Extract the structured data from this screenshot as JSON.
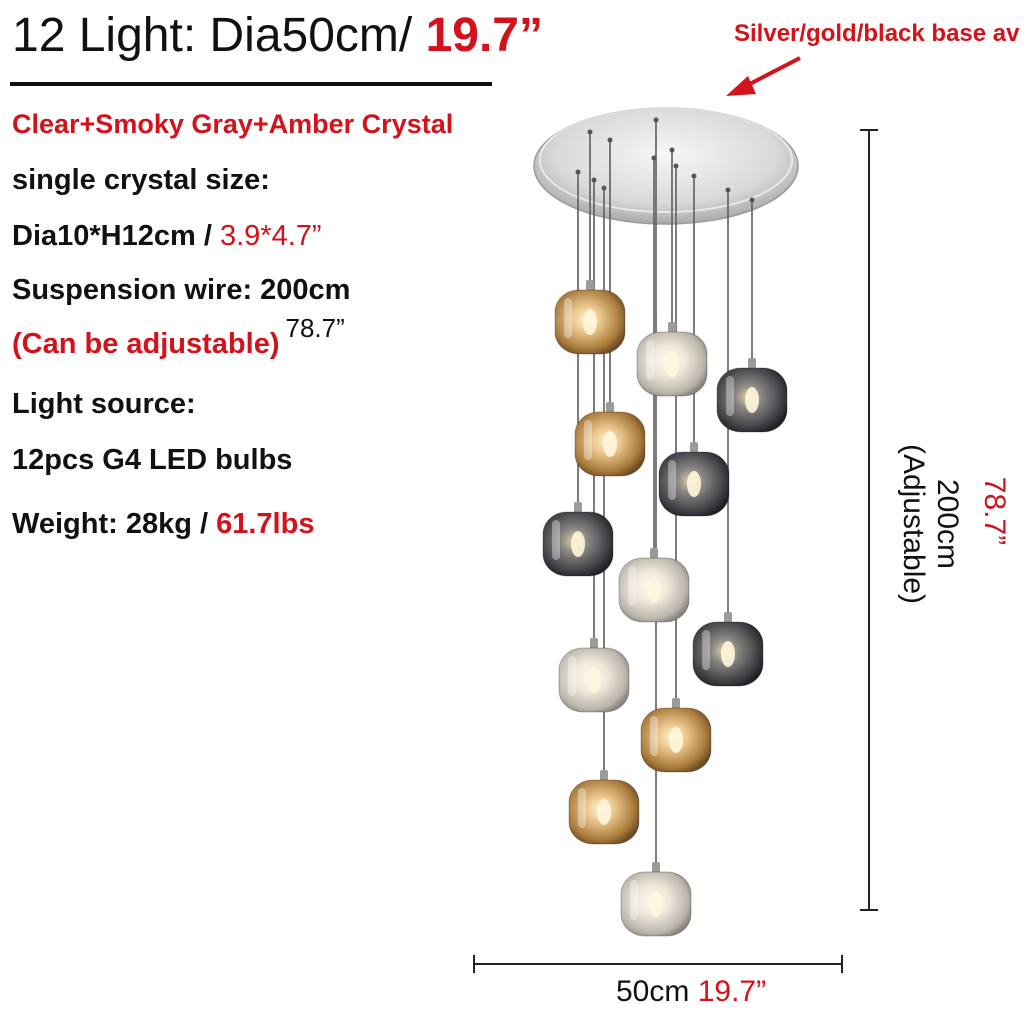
{
  "title": {
    "prefix": "12 Light: Dia50cm/ ",
    "inch": "19.7”"
  },
  "base_note": "Silver/gold/black base av",
  "specs": {
    "crystal_mix": "Clear+Smoky Gray+Amber Crystal",
    "crystal_size_label": "single crystal size:",
    "crystal_size_cm": "Dia10*H12cm / ",
    "crystal_size_in": "3.9*4.7”",
    "wire": "Suspension wire: 200cm",
    "adjustable": "(Can be adjustable)",
    "wire_in": "78.7”",
    "light_source_label": "Light source:",
    "bulbs": "12pcs G4 LED bulbs",
    "weight_kg": "Weight: 28kg / ",
    "weight_lbs": "61.7lbs"
  },
  "dimensions": {
    "height_cm": "200cm",
    "height_note": "(Adjustable)",
    "height_in": "78.7”",
    "width_cm": "50cm ",
    "width_in": "19.7”"
  },
  "colors": {
    "accent_red": "#d4121b",
    "amber": "#c9a06a",
    "smoky": "#4a4c52",
    "clear": "#d8d4cc"
  },
  "icons": {
    "arrow": "red-arrow-icon"
  }
}
